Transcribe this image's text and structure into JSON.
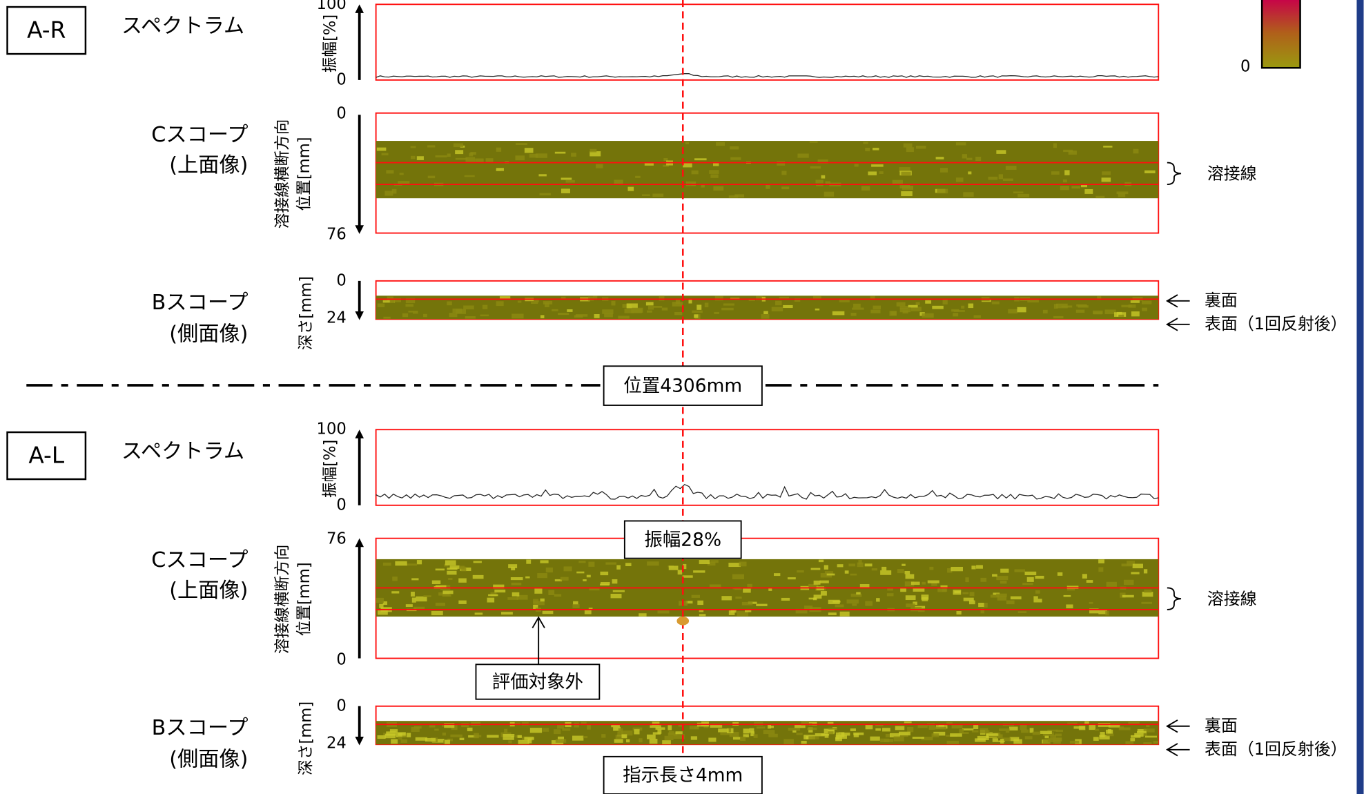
{
  "sections": [
    {
      "id_label": "A-R",
      "spectrum": {
        "title": "スペクトラム",
        "axis_label": "振幅[%]",
        "axis_top": 100,
        "axis_bottom": 0
      },
      "c_scope": {
        "title": [
          "Cスコープ",
          "(上面像)"
        ],
        "axis_label": [
          "溶接線横断方向",
          "位置[mm]"
        ],
        "axis_top": 0,
        "axis_bottom": 76,
        "annotation": "溶接線"
      },
      "b_scope": {
        "title": [
          "Bスコープ",
          "(側面像)"
        ],
        "axis_label": "深さ[mm]",
        "axis_top": 0,
        "axis_bottom": 24,
        "annotations": [
          "裏面",
          "表面（1回反射後）"
        ]
      }
    },
    {
      "id_label": "A-L",
      "spectrum": {
        "title": "スペクトラム",
        "axis_label": "振幅[%]",
        "axis_top": 100,
        "axis_bottom": 0
      },
      "c_scope": {
        "title": [
          "Cスコープ",
          "(上面像)"
        ],
        "axis_label": [
          "溶接線横断方向",
          "位置[mm]"
        ],
        "axis_top": 76,
        "axis_bottom": 0,
        "annotation": "溶接線"
      },
      "b_scope": {
        "title": [
          "Bスコープ",
          "(側面像)"
        ],
        "axis_label": "深さ[mm]",
        "axis_top": 0,
        "axis_bottom": 24,
        "annotations": [
          "裏面",
          "表面（1回反射後）"
        ]
      }
    }
  ],
  "callouts": {
    "position": "位置4306mm",
    "amplitude": "振幅28%",
    "excluded": "評価対象外",
    "indication_length": "指示長さ4mm"
  },
  "color_bar": {
    "min_label": 0
  }
}
